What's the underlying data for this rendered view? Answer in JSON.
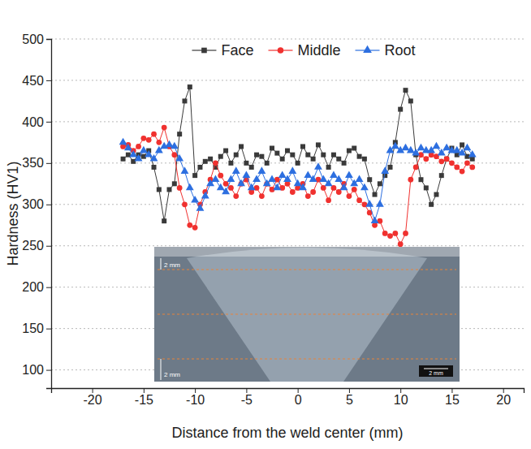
{
  "chart_data": {
    "type": "line",
    "x_label": "Distance from the weld center (mm)",
    "y_label": "Hardness (HV1)",
    "x": [
      -17,
      -16.5,
      -16,
      -15.5,
      -15,
      -14.5,
      -14,
      -13.5,
      -13,
      -12.5,
      -12,
      -11.5,
      -11,
      -10.5,
      -10,
      -9.5,
      -9,
      -8.5,
      -8,
      -7.5,
      -7,
      -6.5,
      -6,
      -5.5,
      -5,
      -4.5,
      -4,
      -3.5,
      -3,
      -2.5,
      -2,
      -1.5,
      -1,
      -0.5,
      0,
      0.5,
      1,
      1.5,
      2,
      2.5,
      3,
      3.5,
      4,
      4.5,
      5,
      5.5,
      6,
      6.5,
      7,
      7.5,
      8,
      8.5,
      9,
      9.5,
      10,
      10.5,
      11,
      11.5,
      12,
      12.5,
      13,
      13.5,
      14,
      14.5,
      15,
      15.5,
      16,
      16.5,
      17
    ],
    "series": [
      {
        "name": "Face",
        "color": "#3a3a3a",
        "marker": "square",
        "values": [
          355,
          360,
          352,
          360,
          358,
          365,
          345,
          318,
          280,
          318,
          325,
          385,
          425,
          442,
          335,
          345,
          352,
          355,
          345,
          358,
          365,
          350,
          360,
          370,
          350,
          345,
          360,
          358,
          350,
          368,
          362,
          355,
          365,
          360,
          350,
          370,
          360,
          355,
          372,
          360,
          345,
          360,
          355,
          350,
          365,
          368,
          358,
          355,
          330,
          312,
          325,
          335,
          345,
          375,
          415,
          438,
          425,
          360,
          330,
          320,
          300,
          312,
          335,
          355,
          368,
          360,
          372,
          358,
          355
        ]
      },
      {
        "name": "Middle",
        "color": "#f0312f",
        "marker": "circle",
        "values": [
          370,
          372,
          365,
          370,
          380,
          378,
          385,
          375,
          393,
          370,
          360,
          320,
          300,
          275,
          272,
          300,
          315,
          330,
          350,
          335,
          325,
          320,
          310,
          325,
          330,
          315,
          320,
          310,
          325,
          318,
          330,
          320,
          325,
          315,
          320,
          325,
          310,
          315,
          330,
          320,
          305,
          320,
          315,
          325,
          310,
          318,
          305,
          300,
          290,
          275,
          280,
          265,
          262,
          265,
          252,
          265,
          330,
          345,
          360,
          355,
          360,
          358,
          352,
          355,
          350,
          345,
          340,
          350,
          345
        ]
      },
      {
        "name": "Root",
        "color": "#2d6fe0",
        "marker": "triangle",
        "values": [
          375,
          368,
          360,
          355,
          365,
          360,
          355,
          365,
          370,
          372,
          370,
          355,
          340,
          320,
          305,
          295,
          310,
          325,
          330,
          320,
          315,
          330,
          340,
          325,
          335,
          320,
          330,
          340,
          325,
          330,
          320,
          335,
          330,
          340,
          325,
          320,
          335,
          330,
          345,
          330,
          325,
          335,
          330,
          320,
          335,
          325,
          330,
          320,
          300,
          280,
          300,
          340,
          365,
          370,
          365,
          368,
          365,
          362,
          368,
          365,
          365,
          370,
          362,
          368,
          365,
          365,
          362,
          368,
          360
        ]
      }
    ],
    "xlim": [
      -24,
      22
    ],
    "xticks": [
      -20,
      -15,
      -10,
      -5,
      0,
      5,
      10,
      15,
      20
    ],
    "ylim": [
      78,
      500
    ],
    "yticks": [
      100,
      150,
      200,
      250,
      300,
      350,
      400,
      450,
      500
    ],
    "grid": true,
    "legend": "top",
    "annotations": [
      "2 mm",
      "2 mm",
      "2 mm"
    ]
  }
}
